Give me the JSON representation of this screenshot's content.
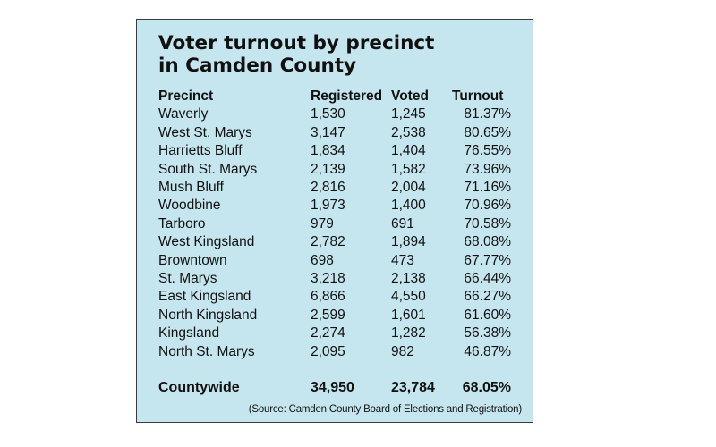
{
  "chart_data": {
    "type": "table",
    "title": [
      "Voter turnout by precinct",
      "in Camden County"
    ],
    "columns": [
      "Precinct",
      "Registered",
      "Voted",
      "Turnout"
    ],
    "rows": [
      {
        "precinct": "Waverly",
        "registered": "1,530",
        "voted": "1,245",
        "turnout": "81.37%"
      },
      {
        "precinct": "West St. Marys",
        "registered": "3,147",
        "voted": "2,538",
        "turnout": "80.65%"
      },
      {
        "precinct": "Harrietts Bluff",
        "registered": "1,834",
        "voted": "1,404",
        "turnout": "76.55%"
      },
      {
        "precinct": "South St. Marys",
        "registered": "2,139",
        "voted": "1,582",
        "turnout": "73.96%"
      },
      {
        "precinct": "Mush Bluff",
        "registered": "2,816",
        "voted": "2,004",
        "turnout": "71.16%"
      },
      {
        "precinct": "Woodbine",
        "registered": "1,973",
        "voted": "1,400",
        "turnout": "70.96%"
      },
      {
        "precinct": "Tarboro",
        "registered": "979",
        "voted": "691",
        "turnout": "70.58%"
      },
      {
        "precinct": "West Kingsland",
        "registered": "2,782",
        "voted": "1,894",
        "turnout": "68.08%"
      },
      {
        "precinct": "Browntown",
        "registered": "698",
        "voted": "473",
        "turnout": "67.77%"
      },
      {
        "precinct": "St. Marys",
        "registered": "3,218",
        "voted": "2,138",
        "turnout": "66.44%"
      },
      {
        "precinct": "East Kingsland",
        "registered": "6,866",
        "voted": "4,550",
        "turnout": "66.27%"
      },
      {
        "precinct": "North Kingsland",
        "registered": "2,599",
        "voted": "1,601",
        "turnout": "61.60%"
      },
      {
        "precinct": "Kingsland",
        "registered": "2,274",
        "voted": "1,282",
        "turnout": "56.38%"
      },
      {
        "precinct": "North St. Marys",
        "registered": "2,095",
        "voted": "982",
        "turnout": "46.87%"
      }
    ],
    "total": {
      "precinct": "Countywide",
      "registered": "34,950",
      "voted": "23,784",
      "turnout": "68.05%"
    },
    "source": "(Source: Camden County Board of Elections and Registration)",
    "background_color": "#c6e6ef"
  }
}
